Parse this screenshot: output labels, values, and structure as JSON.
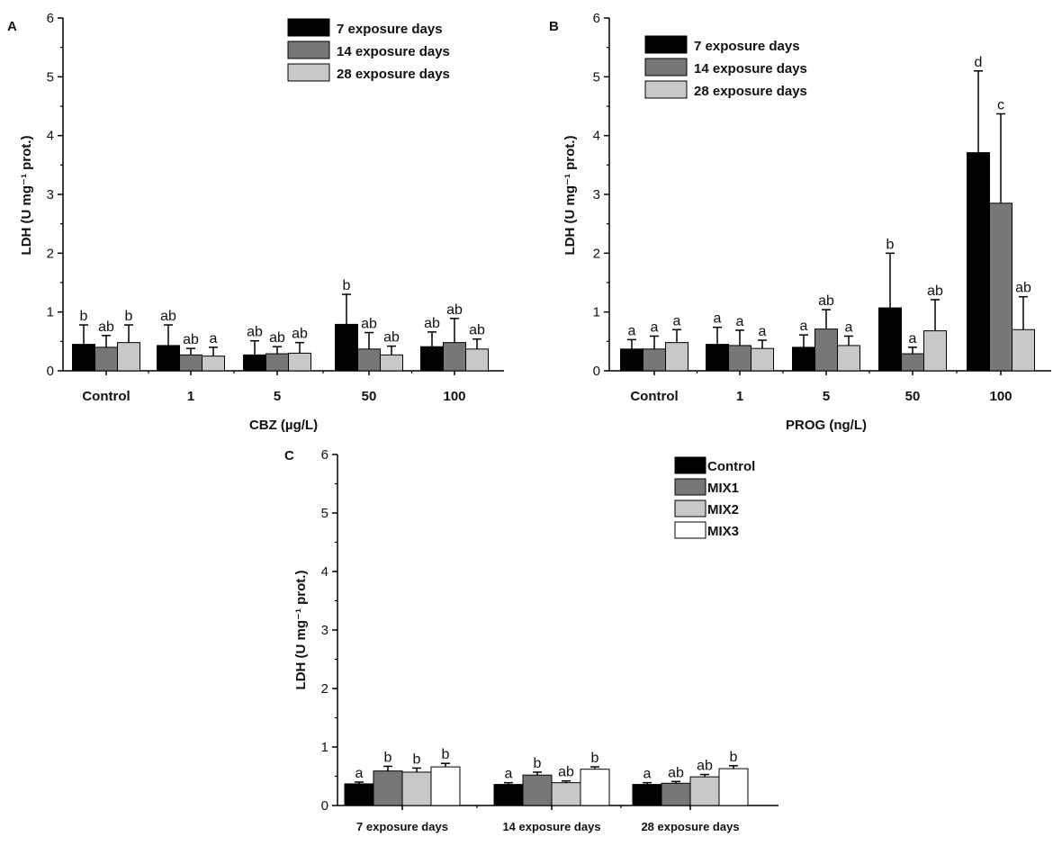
{
  "figure": {
    "colors": {
      "series_black": "#000000",
      "series_dark_gray": "#777777",
      "series_light_gray": "#c8c8c8",
      "series_white": "#ffffff",
      "axis": "#000000"
    }
  },
  "chart_data": [
    {
      "panel": "A",
      "type": "bar",
      "title": "",
      "xlabel": "CBZ (µg/L)",
      "ylabel": "LDH (U mg⁻¹ prot.)",
      "ylim": [
        0,
        6
      ],
      "yticks": [
        "0",
        "1",
        "2",
        "3",
        "4",
        "5",
        "6"
      ],
      "legend_position": "top-right",
      "categories": [
        "Control",
        "1",
        "5",
        "50",
        "100"
      ],
      "series": [
        {
          "name": "7 exposure days",
          "color": "#000000",
          "values": [
            0.45,
            0.43,
            0.27,
            0.79,
            0.41
          ],
          "errors": [
            0.33,
            0.35,
            0.24,
            0.51,
            0.25
          ],
          "letters": [
            "b",
            "ab",
            "ab",
            "b",
            "ab"
          ]
        },
        {
          "name": "14 exposure days",
          "color": "#777777",
          "values": [
            0.4,
            0.27,
            0.29,
            0.37,
            0.48
          ],
          "errors": [
            0.2,
            0.11,
            0.12,
            0.28,
            0.41
          ],
          "letters": [
            "ab",
            "ab",
            "ab",
            "ab",
            "ab"
          ]
        },
        {
          "name": "28 exposure days",
          "color": "#c8c8c8",
          "values": [
            0.48,
            0.25,
            0.3,
            0.27,
            0.37
          ],
          "errors": [
            0.3,
            0.15,
            0.18,
            0.15,
            0.17
          ],
          "letters": [
            "b",
            "a",
            "ab",
            "ab",
            "ab"
          ]
        }
      ]
    },
    {
      "panel": "B",
      "type": "bar",
      "title": "",
      "xlabel": "PROG (ng/L)",
      "ylabel": "LDH (U mg⁻¹ prot.)",
      "ylim": [
        0,
        6
      ],
      "yticks": [
        "0",
        "1",
        "2",
        "3",
        "4",
        "5",
        "6"
      ],
      "legend_position": "top-left",
      "categories": [
        "Control",
        "1",
        "5",
        "50",
        "100"
      ],
      "series": [
        {
          "name": "7 exposure days",
          "color": "#000000",
          "values": [
            0.37,
            0.45,
            0.4,
            1.07,
            3.71
          ],
          "errors": [
            0.16,
            0.29,
            0.21,
            0.93,
            1.39
          ],
          "letters": [
            "a",
            "a",
            "a",
            "b",
            "d"
          ]
        },
        {
          "name": "14 exposure days",
          "color": "#777777",
          "values": [
            0.37,
            0.43,
            0.71,
            0.29,
            2.85
          ],
          "errors": [
            0.22,
            0.26,
            0.33,
            0.11,
            1.52
          ],
          "letters": [
            "a",
            "a",
            "ab",
            "a",
            "c"
          ]
        },
        {
          "name": "28 exposure days",
          "color": "#c8c8c8",
          "values": [
            0.48,
            0.38,
            0.43,
            0.68,
            0.7
          ],
          "errors": [
            0.22,
            0.14,
            0.16,
            0.53,
            0.56
          ],
          "letters": [
            "a",
            "a",
            "a",
            "ab",
            "ab"
          ]
        }
      ]
    },
    {
      "panel": "C",
      "type": "bar",
      "title": "",
      "xlabel": "",
      "ylabel": "LDH (U mg⁻¹ prot.)",
      "ylim": [
        0,
        6
      ],
      "yticks": [
        "0",
        "1",
        "2",
        "3",
        "4",
        "5",
        "6"
      ],
      "legend_position": "top-right",
      "categories": [
        "7 exposure days",
        "14 exposure days",
        "28 exposure days"
      ],
      "series": [
        {
          "name": "Control",
          "color": "#000000",
          "values": [
            0.37,
            0.36,
            0.36
          ],
          "errors": [
            0.03,
            0.03,
            0.03
          ],
          "letters": [
            "a",
            "a",
            "a"
          ]
        },
        {
          "name": "MIX1",
          "color": "#777777",
          "values": [
            0.59,
            0.52,
            0.38
          ],
          "errors": [
            0.08,
            0.05,
            0.03
          ],
          "letters": [
            "b",
            "b",
            "ab"
          ]
        },
        {
          "name": "MIX2",
          "color": "#c8c8c8",
          "values": [
            0.57,
            0.39,
            0.49
          ],
          "errors": [
            0.07,
            0.03,
            0.04
          ],
          "letters": [
            "b",
            "ab",
            "ab"
          ]
        },
        {
          "name": "MIX3",
          "color": "#ffffff",
          "values": [
            0.66,
            0.62,
            0.63
          ],
          "errors": [
            0.06,
            0.04,
            0.05
          ],
          "letters": [
            "b",
            "b",
            "b"
          ]
        }
      ]
    }
  ]
}
